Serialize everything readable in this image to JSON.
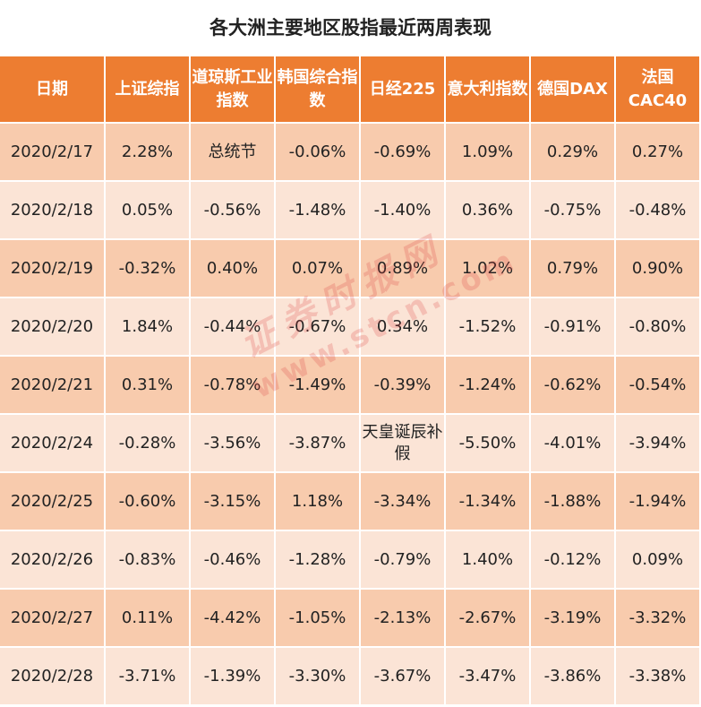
{
  "chart_data": {
    "type": "table",
    "title": "各大洲主要地区股指最近两周表现",
    "columns": [
      "日期",
      "上证综指",
      "道琼斯工业指数",
      "韩国综合指数",
      "日经225",
      "意大利指数",
      "德国DAX",
      "法国CAC40"
    ],
    "rows": [
      [
        "2020/2/17",
        "2.28%",
        "总统节",
        "-0.06%",
        "-0.69%",
        "1.09%",
        "0.29%",
        "0.27%"
      ],
      [
        "2020/2/18",
        "0.05%",
        "-0.56%",
        "-1.48%",
        "-1.40%",
        "0.36%",
        "-0.75%",
        "-0.48%"
      ],
      [
        "2020/2/19",
        "-0.32%",
        "0.40%",
        "0.07%",
        "0.89%",
        "1.02%",
        "0.79%",
        "0.90%"
      ],
      [
        "2020/2/20",
        "1.84%",
        "-0.44%",
        "-0.67%",
        "0.34%",
        "-1.52%",
        "-0.91%",
        "-0.80%"
      ],
      [
        "2020/2/21",
        "0.31%",
        "-0.78%",
        "-1.49%",
        "-0.39%",
        "-1.24%",
        "-0.62%",
        "-0.54%"
      ],
      [
        "2020/2/24",
        "-0.28%",
        "-3.56%",
        "-3.87%",
        "天皇诞辰补假",
        "-5.50%",
        "-4.01%",
        "-3.94%"
      ],
      [
        "2020/2/25",
        "-0.60%",
        "-3.15%",
        "1.18%",
        "-3.34%",
        "-1.34%",
        "-1.88%",
        "-1.94%"
      ],
      [
        "2020/2/26",
        "-0.83%",
        "-0.46%",
        "-1.28%",
        "-0.79%",
        "1.40%",
        "-0.12%",
        "0.09%"
      ],
      [
        "2020/2/27",
        "0.11%",
        "-4.42%",
        "-1.05%",
        "-2.13%",
        "-2.67%",
        "-3.19%",
        "-3.32%"
      ],
      [
        "2020/2/28",
        "-3.71%",
        "-1.39%",
        "-3.30%",
        "-3.67%",
        "-3.47%",
        "-3.86%",
        "-3.38%"
      ]
    ]
  },
  "watermark": {
    "text": "证券时报网",
    "url": "www.stcn.com"
  },
  "colors": {
    "header": "#ed7d31",
    "row_dark": "#f8cbad",
    "row_light": "#fbe4d6",
    "watermark": "#dc3c3c"
  }
}
